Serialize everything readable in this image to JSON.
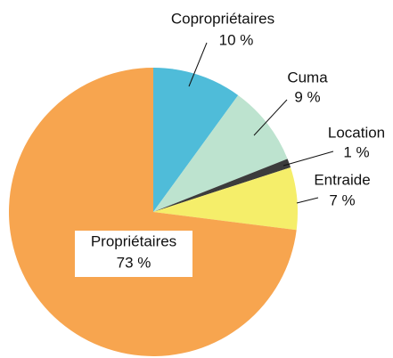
{
  "chart_data": {
    "type": "pie",
    "categories": [
      "Copropriétaires",
      "Cuma",
      "Location",
      "Entraide",
      "Propriétaires"
    ],
    "values": [
      10,
      9,
      1,
      7,
      73
    ],
    "value_labels": [
      "10 %",
      "9 %",
      "1 %",
      "7 %",
      "73 %"
    ],
    "colors": [
      "#4fbcd9",
      "#bde3cf",
      "#3c3c3c",
      "#f5ee6a",
      "#f7a54f"
    ]
  }
}
